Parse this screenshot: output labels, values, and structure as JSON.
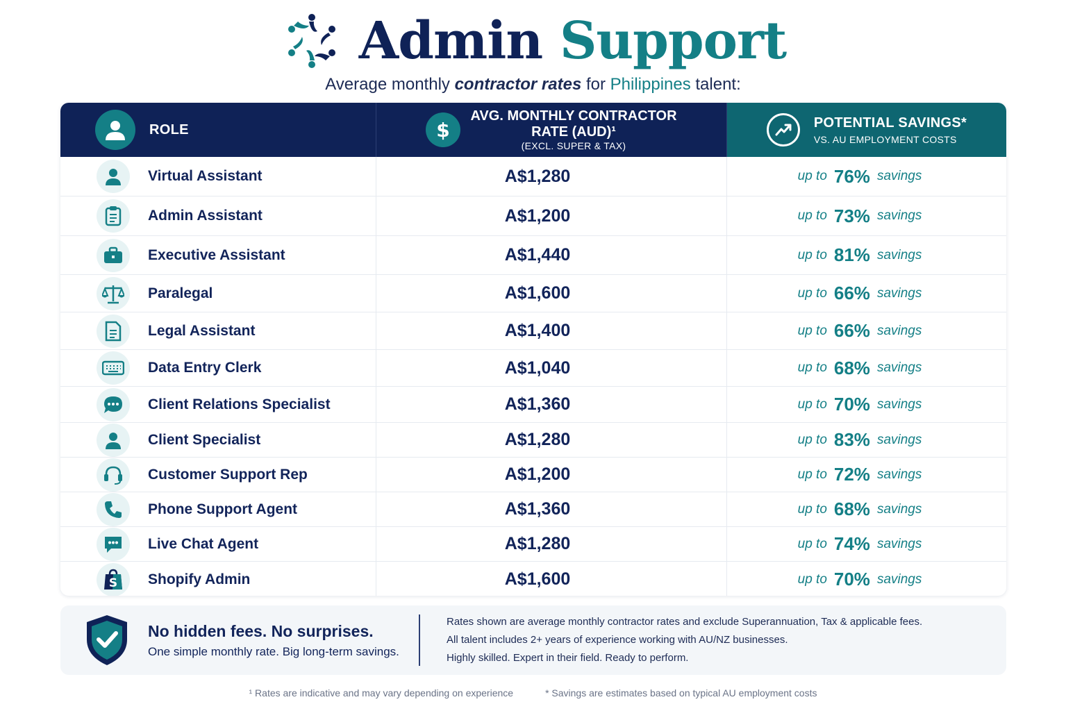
{
  "header": {
    "title_part1": "Admin",
    "title_part2": "Support",
    "subtitle_pre": "Average monthly ",
    "subtitle_em": "contractor rates",
    "subtitle_mid": " for ",
    "subtitle_hl": "Philippines",
    "subtitle_post": " talent:"
  },
  "table": {
    "col_role": "ROLE",
    "col_rate_line1": "AVG. MONTHLY CONTRACTOR",
    "col_rate_line2": "RATE (AUD)¹",
    "col_rate_line3": "(EXCL. SUPER & TAX)",
    "col_savings_line1": "POTENTIAL SAVINGS*",
    "col_savings_line2": "VS. AU EMPLOYMENT COSTS",
    "up_to_label": "up to",
    "savings_label": "savings",
    "rows": [
      {
        "role": "Virtual Assistant",
        "rate": "A$1,280",
        "savings": "76%",
        "icon": "person-icon"
      },
      {
        "role": "Admin Assistant",
        "rate": "A$1,200",
        "savings": "73%",
        "icon": "clipboard-icon"
      },
      {
        "role": "Executive Assistant",
        "rate": "A$1,440",
        "savings": "81%",
        "icon": "briefcase-icon"
      },
      {
        "role": "Paralegal",
        "rate": "A$1,600",
        "savings": "66%",
        "icon": "scales-icon"
      },
      {
        "role": "Legal Assistant",
        "rate": "A$1,400",
        "savings": "66%",
        "icon": "document-icon"
      },
      {
        "role": "Data Entry Clerk",
        "rate": "A$1,040",
        "savings": "68%",
        "icon": "keyboard-icon"
      },
      {
        "role": "Client Relations Specialist",
        "rate": "A$1,360",
        "savings": "70%",
        "icon": "chat-bubble-icon"
      },
      {
        "role": "Client Specialist",
        "rate": "A$1,280",
        "savings": "83%",
        "icon": "person-icon"
      },
      {
        "role": "Customer Support Rep",
        "rate": "A$1,200",
        "savings": "72%",
        "icon": "headset-icon"
      },
      {
        "role": "Phone Support Agent",
        "rate": "A$1,360",
        "savings": "68%",
        "icon": "phone-icon"
      },
      {
        "role": "Live Chat Agent",
        "rate": "A$1,280",
        "savings": "74%",
        "icon": "chat-box-icon"
      },
      {
        "role": "Shopify Admin",
        "rate": "A$1,600",
        "savings": "70%",
        "icon": "shopify-bag-icon"
      }
    ]
  },
  "notes": {
    "headline": "No hidden fees. No surprises.",
    "sub": "One simple monthly rate. Big long-term savings.",
    "line1": "Rates shown are average monthly contractor rates and exclude Superannuation, Tax & applicable fees.",
    "line2": "All talent includes 2+ years of experience working with AU/NZ businesses.",
    "line3": "Highly skilled. Expert in their field. Ready to perform."
  },
  "footnotes": {
    "left": "¹ Rates are indicative and may vary depending on experience",
    "right": "* Savings are estimates based on typical AU employment costs"
  },
  "colors": {
    "navy": "#0f2257",
    "teal": "#147f86",
    "teal_dark": "#0e6671"
  }
}
